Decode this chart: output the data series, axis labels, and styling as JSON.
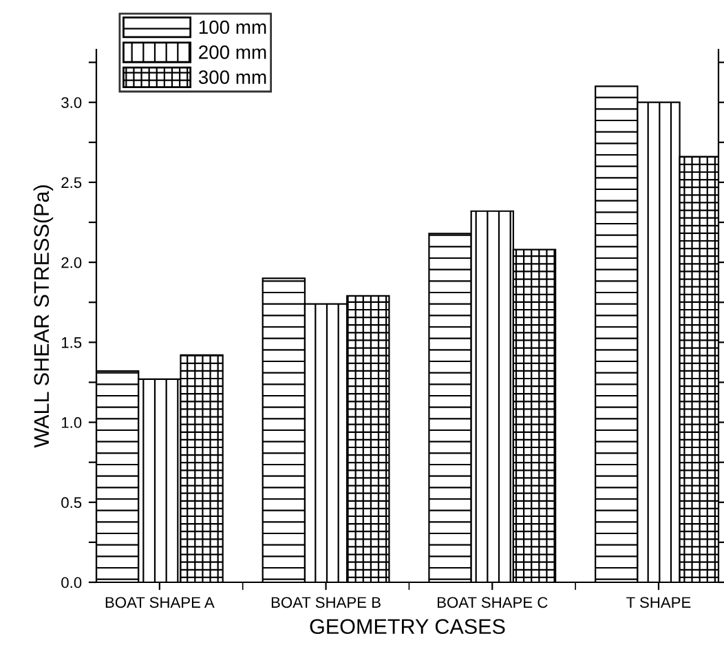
{
  "chart_data": {
    "type": "bar",
    "xlabel": "GEOMETRY CASES",
    "ylabel": "WALL SHEAR STRESS(Pa)",
    "categories": [
      "BOAT SHAPE A",
      "BOAT SHAPE B",
      "BOAT SHAPE C",
      "T SHAPE"
    ],
    "series": [
      {
        "name": "100 mm",
        "color": "#000000",
        "values": [
          1.32,
          1.9,
          2.18,
          3.1
        ]
      },
      {
        "name": "200 mm",
        "color": "#000000",
        "values": [
          1.27,
          1.74,
          2.32,
          3.0
        ]
      },
      {
        "name": "300 mm",
        "color": "#000000",
        "values": [
          1.42,
          1.79,
          2.08,
          2.66
        ]
      }
    ],
    "ylim": [
      0,
      3.33
    ],
    "yticks": [
      {
        "value": 0,
        "label": "0.0"
      },
      {
        "value": 0.25,
        "label": null
      },
      {
        "value": 0.5,
        "label": "0.5"
      },
      {
        "value": 0.75,
        "label": null
      },
      {
        "value": 1,
        "label": "1.0"
      },
      {
        "value": 1.25,
        "label": null
      },
      {
        "value": 1.5,
        "label": "1.5"
      },
      {
        "value": 1.75,
        "label": null
      },
      {
        "value": 2,
        "label": "2.0"
      },
      {
        "value": 2.25,
        "label": null
      },
      {
        "value": 2.5,
        "label": "2.5"
      },
      {
        "value": 2.75,
        "label": null
      },
      {
        "value": 3,
        "label": "3.0"
      },
      {
        "value": 3.25,
        "label": null
      }
    ],
    "grid": false,
    "legend": "top left"
  }
}
